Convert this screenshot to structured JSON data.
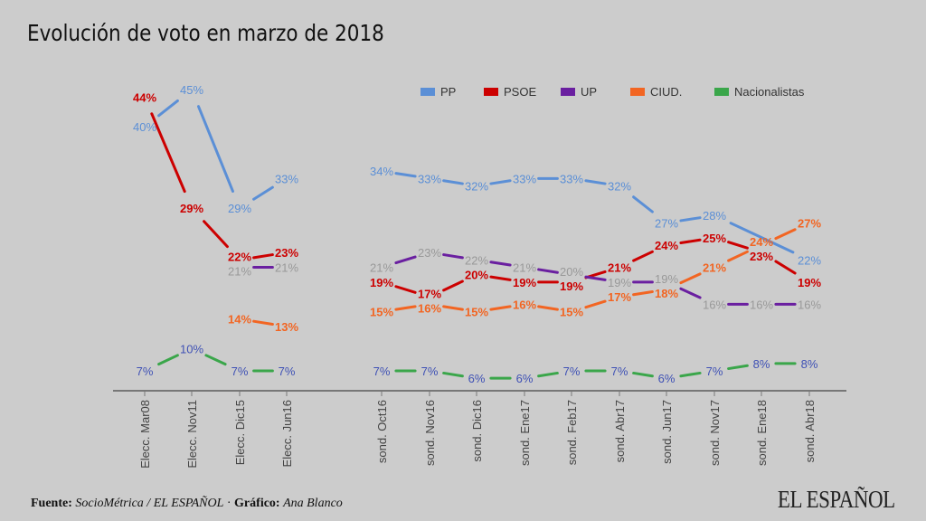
{
  "title": "Evolución de voto en marzo de 2018",
  "footer": {
    "source_label": "Fuente:",
    "source": "SocioMétrica / EL ESPAÑOL",
    "sep": " · ",
    "credit_label": "Gráfico:",
    "credit": "Ana Blanco"
  },
  "logo": "EL ESPAÑOL",
  "chart_data": {
    "type": "line",
    "title": "Evolución de voto en marzo de 2018",
    "categories": [
      "Elecc. Mar08",
      "Elecc. Nov11",
      "Elecc. Dic15",
      "Elecc. Jun16",
      "sond. Oct16",
      "sond. Nov16",
      "sond. Dic16",
      "sond. Ene17",
      "sond. Feb17",
      "sond. Abr17",
      "sond. Jun17",
      "sond. Nov17",
      "sond. Ene18",
      "sond. Abr18"
    ],
    "unit": "%",
    "legend_position": "top-right",
    "grid": false,
    "series": [
      {
        "name": "PP",
        "color": "#5b8fd6",
        "label_color": "#5b8fd6",
        "values": [
          40,
          45,
          29,
          33,
          34,
          33,
          32,
          33,
          33,
          32,
          27,
          28,
          null,
          22
        ]
      },
      {
        "name": "PSOE",
        "color": "#cc0000",
        "label_color": "#cc0000",
        "values": [
          44,
          29,
          22,
          23,
          19,
          17,
          20,
          19,
          19,
          21,
          24,
          25,
          23,
          19
        ]
      },
      {
        "name": "UP",
        "color": "#6a1fa0",
        "label_color": "#999999",
        "values": [
          null,
          null,
          21,
          21,
          21,
          23,
          22,
          21,
          20,
          19,
          19,
          16,
          16,
          16
        ]
      },
      {
        "name": "CIUD.",
        "color": "#f26522",
        "label_color": "#f26522",
        "values": [
          null,
          null,
          14,
          13,
          15,
          16,
          15,
          16,
          15,
          17,
          18,
          21,
          24,
          27
        ]
      },
      {
        "name": "Nacionalistas",
        "color": "#3aa64a",
        "label_color": "#3f51b5",
        "values": [
          7,
          10,
          7,
          7,
          7,
          7,
          6,
          6,
          7,
          7,
          6,
          7,
          8,
          8
        ]
      }
    ]
  }
}
